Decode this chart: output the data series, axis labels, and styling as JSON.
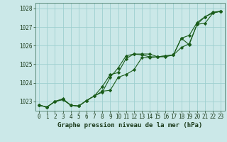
{
  "title": "Graphe pression niveau de la mer (hPa)",
  "bg_color": "#cbe8e8",
  "grid_color": "#9ecfcf",
  "line_color": "#1a5c1a",
  "xlim": [
    -0.5,
    23.5
  ],
  "ylim": [
    1022.5,
    1028.3
  ],
  "yticks": [
    1023,
    1024,
    1025,
    1026,
    1027,
    1028
  ],
  "xticks": [
    0,
    1,
    2,
    3,
    4,
    5,
    6,
    7,
    8,
    9,
    10,
    11,
    12,
    13,
    14,
    15,
    16,
    17,
    18,
    19,
    20,
    21,
    22,
    23
  ],
  "line1": [
    1022.8,
    1022.7,
    1023.0,
    1023.1,
    1022.8,
    1022.75,
    1023.05,
    1023.3,
    1023.5,
    1024.3,
    1024.8,
    1025.45,
    1025.55,
    1025.5,
    1025.4,
    1025.4,
    1025.45,
    1025.5,
    1026.4,
    1026.05,
    1027.15,
    1027.55,
    1027.8,
    1027.85
  ],
  "line2": [
    1022.8,
    1022.7,
    1023.0,
    1023.1,
    1022.8,
    1022.75,
    1023.05,
    1023.3,
    1023.8,
    1024.45,
    1024.55,
    1025.3,
    1025.55,
    1025.55,
    1025.55,
    1025.4,
    1025.45,
    1025.5,
    1025.9,
    1026.1,
    1027.15,
    1027.2,
    1027.75,
    1027.85
  ],
  "line3": [
    1022.8,
    1022.7,
    1023.0,
    1023.15,
    1022.8,
    1022.75,
    1023.05,
    1023.3,
    1023.55,
    1023.6,
    1024.3,
    1024.45,
    1024.7,
    1025.35,
    1025.35,
    1025.4,
    1025.4,
    1025.5,
    1026.4,
    1026.55,
    1027.25,
    1027.55,
    1027.75,
    1027.85
  ]
}
